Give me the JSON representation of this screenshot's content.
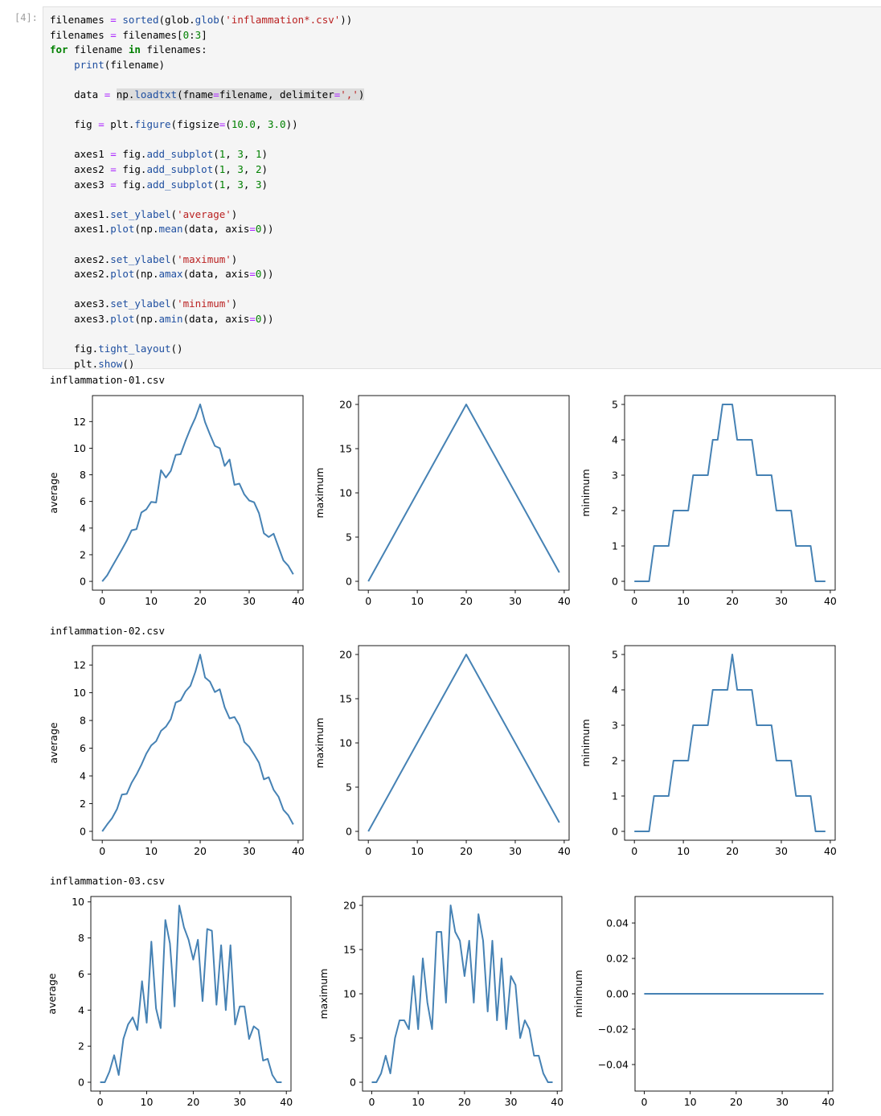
{
  "cell": {
    "prompt": "[4]:",
    "code_lines": [
      [
        [
          "filenames ",
          ""
        ],
        [
          "=",
          "op"
        ],
        [
          " ",
          ""
        ],
        [
          "sorted",
          "fn"
        ],
        [
          "(glob.",
          ""
        ],
        [
          "glob",
          "fn"
        ],
        [
          "(",
          ""
        ],
        [
          "'inflammation*.csv'",
          "str"
        ],
        [
          "))",
          ""
        ]
      ],
      [
        [
          "filenames ",
          ""
        ],
        [
          "=",
          "op"
        ],
        [
          " filenames[",
          ""
        ],
        [
          "0",
          "num"
        ],
        [
          ":",
          ""
        ],
        [
          "3",
          "num"
        ],
        [
          "]",
          ""
        ]
      ],
      [
        [
          "for",
          "kw"
        ],
        [
          " filename ",
          ""
        ],
        [
          "in",
          "kw"
        ],
        [
          " filenames:",
          ""
        ]
      ],
      [
        [
          "    ",
          ""
        ],
        [
          "print",
          "fn"
        ],
        [
          "(filename)",
          ""
        ]
      ],
      [
        [
          "",
          ""
        ]
      ],
      [
        [
          "    data ",
          ""
        ],
        [
          "=",
          "op"
        ],
        [
          " ",
          ""
        ],
        [
          "np.",
          "hl"
        ],
        [
          "loadtxt",
          "hlfn"
        ],
        [
          "(fname",
          "hl"
        ],
        [
          "=",
          "hlop"
        ],
        [
          "filename, delimiter",
          "hl"
        ],
        [
          "=",
          "hlop"
        ],
        [
          "','",
          "hlstr"
        ],
        [
          ")",
          "hl"
        ]
      ],
      [
        [
          "",
          ""
        ]
      ],
      [
        [
          "    fig ",
          ""
        ],
        [
          "=",
          "op"
        ],
        [
          " plt.",
          ""
        ],
        [
          "figure",
          "fn"
        ],
        [
          "(figsize",
          ""
        ],
        [
          "=",
          "op"
        ],
        [
          "(",
          ""
        ],
        [
          "10.0",
          "num"
        ],
        [
          ", ",
          ""
        ],
        [
          "3.0",
          "num"
        ],
        [
          "))",
          ""
        ]
      ],
      [
        [
          "",
          ""
        ]
      ],
      [
        [
          "    axes1 ",
          ""
        ],
        [
          "=",
          "op"
        ],
        [
          " fig.",
          ""
        ],
        [
          "add_subplot",
          "fn"
        ],
        [
          "(",
          ""
        ],
        [
          "1",
          "num"
        ],
        [
          ", ",
          ""
        ],
        [
          "3",
          "num"
        ],
        [
          ", ",
          ""
        ],
        [
          "1",
          "num"
        ],
        [
          ")",
          ""
        ]
      ],
      [
        [
          "    axes2 ",
          ""
        ],
        [
          "=",
          "op"
        ],
        [
          " fig.",
          ""
        ],
        [
          "add_subplot",
          "fn"
        ],
        [
          "(",
          ""
        ],
        [
          "1",
          "num"
        ],
        [
          ", ",
          ""
        ],
        [
          "3",
          "num"
        ],
        [
          ", ",
          ""
        ],
        [
          "2",
          "num"
        ],
        [
          ")",
          ""
        ]
      ],
      [
        [
          "    axes3 ",
          ""
        ],
        [
          "=",
          "op"
        ],
        [
          " fig.",
          ""
        ],
        [
          "add_subplot",
          "fn"
        ],
        [
          "(",
          ""
        ],
        [
          "1",
          "num"
        ],
        [
          ", ",
          ""
        ],
        [
          "3",
          "num"
        ],
        [
          ", ",
          ""
        ],
        [
          "3",
          "num"
        ],
        [
          ")",
          ""
        ]
      ],
      [
        [
          "",
          ""
        ]
      ],
      [
        [
          "    axes1.",
          ""
        ],
        [
          "set_ylabel",
          "fn"
        ],
        [
          "(",
          ""
        ],
        [
          "'average'",
          "str"
        ],
        [
          ")",
          ""
        ]
      ],
      [
        [
          "    axes1.",
          ""
        ],
        [
          "plot",
          "fn"
        ],
        [
          "(np.",
          ""
        ],
        [
          "mean",
          "fn"
        ],
        [
          "(data, axis",
          ""
        ],
        [
          "=",
          "op"
        ],
        [
          "0",
          "num"
        ],
        [
          "))",
          ""
        ]
      ],
      [
        [
          "",
          ""
        ]
      ],
      [
        [
          "    axes2.",
          ""
        ],
        [
          "set_ylabel",
          "fn"
        ],
        [
          "(",
          ""
        ],
        [
          "'maximum'",
          "str"
        ],
        [
          ")",
          ""
        ]
      ],
      [
        [
          "    axes2.",
          ""
        ],
        [
          "plot",
          "fn"
        ],
        [
          "(np.",
          ""
        ],
        [
          "amax",
          "fn"
        ],
        [
          "(data, axis",
          ""
        ],
        [
          "=",
          "op"
        ],
        [
          "0",
          "num"
        ],
        [
          "))",
          ""
        ]
      ],
      [
        [
          "",
          ""
        ]
      ],
      [
        [
          "    axes3.",
          ""
        ],
        [
          "set_ylabel",
          "fn"
        ],
        [
          "(",
          ""
        ],
        [
          "'minimum'",
          "str"
        ],
        [
          ")",
          ""
        ]
      ],
      [
        [
          "    axes3.",
          ""
        ],
        [
          "plot",
          "fn"
        ],
        [
          "(np.",
          ""
        ],
        [
          "amin",
          "fn"
        ],
        [
          "(data, axis",
          ""
        ],
        [
          "=",
          "op"
        ],
        [
          "0",
          "num"
        ],
        [
          "))",
          ""
        ]
      ],
      [
        [
          "",
          ""
        ]
      ],
      [
        [
          "    fig.",
          ""
        ],
        [
          "tight_layout",
          "fn"
        ],
        [
          "()",
          ""
        ]
      ],
      [
        [
          "    plt.",
          ""
        ],
        [
          "show",
          "fn"
        ],
        [
          "()",
          ""
        ]
      ]
    ]
  },
  "output": {
    "line_color": "#4682b4",
    "files": [
      "inflammation-01.csv",
      "inflammation-02.csv",
      "inflammation-03.csv"
    ]
  },
  "chart_data": [
    {
      "type": "line",
      "file": "inflammation-01.csv",
      "ylabel": "average",
      "xlim": [
        -2,
        41
      ],
      "ylim": [
        -0.66,
        13.95
      ],
      "xticks": [
        0,
        10,
        20,
        30,
        40
      ],
      "yticks": [
        0,
        2,
        4,
        6,
        8,
        10,
        12
      ],
      "y": [
        0,
        0.45,
        1.11,
        1.75,
        2.39,
        3.06,
        3.83,
        3.92,
        5.17,
        5.41,
        5.97,
        5.92,
        8.35,
        7.8,
        8.3,
        9.5,
        9.55,
        10.55,
        11.47,
        12.28,
        13.29,
        11.96,
        11.03,
        10.17,
        10,
        8.67,
        9.15,
        7.25,
        7.34,
        6.53,
        6.07,
        5.94,
        5.12,
        3.61,
        3.33,
        3.58,
        2.57,
        1.57,
        1.17,
        0.53
      ]
    },
    {
      "type": "line",
      "file": "inflammation-01.csv",
      "ylabel": "maximum",
      "xlim": [
        -2,
        41
      ],
      "ylim": [
        -1,
        21
      ],
      "xticks": [
        0,
        10,
        20,
        30,
        40
      ],
      "yticks": [
        0,
        5,
        10,
        15,
        20
      ],
      "y": [
        0,
        1,
        2,
        3,
        4,
        5,
        6,
        7,
        8,
        9,
        10,
        11,
        12,
        13,
        14,
        15,
        16,
        17,
        18,
        19,
        20,
        19,
        18,
        17,
        16,
        15,
        14,
        13,
        12,
        11,
        10,
        9,
        8,
        7,
        6,
        5,
        4,
        3,
        2,
        1
      ]
    },
    {
      "type": "line",
      "file": "inflammation-01.csv",
      "ylabel": "minimum",
      "xlim": [
        -2,
        41
      ],
      "ylim": [
        -0.25,
        5.25
      ],
      "xticks": [
        0,
        10,
        20,
        30,
        40
      ],
      "yticks": [
        0,
        1,
        2,
        3,
        4,
        5
      ],
      "y": [
        0,
        0,
        0,
        0,
        1,
        1,
        1,
        1,
        2,
        2,
        2,
        2,
        3,
        3,
        3,
        3,
        4,
        4,
        5,
        5,
        5,
        4,
        4,
        4,
        4,
        3,
        3,
        3,
        3,
        2,
        2,
        2,
        2,
        1,
        1,
        1,
        1,
        0,
        0,
        0
      ]
    },
    {
      "type": "line",
      "file": "inflammation-02.csv",
      "ylabel": "average",
      "xlim": [
        -2,
        41
      ],
      "ylim": [
        -0.64,
        13.4
      ],
      "xticks": [
        0,
        10,
        20,
        30,
        40
      ],
      "yticks": [
        0,
        2,
        4,
        6,
        8,
        10,
        12
      ],
      "y": [
        0,
        0.5,
        0.95,
        1.6,
        2.65,
        2.7,
        3.5,
        4.1,
        4.8,
        5.6,
        6.2,
        6.5,
        7.25,
        7.55,
        8.1,
        9.3,
        9.45,
        10.1,
        10.5,
        11.5,
        12.75,
        11.1,
        10.8,
        10.05,
        10.25,
        8.95,
        8.15,
        8.25,
        7.65,
        6.45,
        6.1,
        5.55,
        4.95,
        3.75,
        3.9,
        3,
        2.5,
        1.55,
        1.15,
        0.5
      ]
    },
    {
      "type": "line",
      "file": "inflammation-02.csv",
      "ylabel": "maximum",
      "xlim": [
        -2,
        41
      ],
      "ylim": [
        -1,
        21
      ],
      "xticks": [
        0,
        10,
        20,
        30,
        40
      ],
      "yticks": [
        0,
        5,
        10,
        15,
        20
      ],
      "y": [
        0,
        1,
        2,
        3,
        4,
        5,
        6,
        7,
        8,
        9,
        10,
        11,
        12,
        13,
        14,
        15,
        16,
        17,
        18,
        19,
        20,
        19,
        18,
        17,
        16,
        15,
        14,
        13,
        12,
        11,
        10,
        9,
        8,
        7,
        6,
        5,
        4,
        3,
        2,
        1
      ]
    },
    {
      "type": "line",
      "file": "inflammation-02.csv",
      "ylabel": "minimum",
      "xlim": [
        -2,
        41
      ],
      "ylim": [
        -0.25,
        5.25
      ],
      "xticks": [
        0,
        10,
        20,
        30,
        40
      ],
      "yticks": [
        0,
        1,
        2,
        3,
        4,
        5
      ],
      "y": [
        0,
        0,
        0,
        0,
        1,
        1,
        1,
        1,
        2,
        2,
        2,
        2,
        3,
        3,
        3,
        3,
        4,
        4,
        4,
        4,
        5,
        4,
        4,
        4,
        4,
        3,
        3,
        3,
        3,
        2,
        2,
        2,
        2,
        1,
        1,
        1,
        1,
        0,
        0,
        0
      ]
    },
    {
      "type": "line",
      "file": "inflammation-03.csv",
      "ylabel": "average",
      "xlim": [
        -2,
        41
      ],
      "ylim": [
        -0.49,
        10.3
      ],
      "xticks": [
        0,
        10,
        20,
        30,
        40
      ],
      "yticks": [
        0,
        2,
        4,
        6,
        8,
        10
      ],
      "y": [
        0,
        0,
        0.6,
        1.5,
        0.4,
        2.4,
        3.2,
        3.6,
        2.9,
        5.6,
        3.3,
        7.8,
        4.1,
        3,
        9,
        7.7,
        4.2,
        9.8,
        8.6,
        7.9,
        6.8,
        7.9,
        4.5,
        8.5,
        8.4,
        4.3,
        7.6,
        4,
        7.6,
        3.2,
        4.2,
        4.2,
        2.4,
        3.1,
        2.9,
        1.2,
        1.3,
        0.4,
        0,
        0
      ]
    },
    {
      "type": "line",
      "file": "inflammation-03.csv",
      "ylabel": "maximum",
      "xlim": [
        -2,
        41
      ],
      "ylim": [
        -1,
        21
      ],
      "xticks": [
        0,
        10,
        20,
        30,
        40
      ],
      "yticks": [
        0,
        5,
        10,
        15,
        20
      ],
      "y": [
        0,
        0,
        1,
        3,
        1,
        5,
        7,
        7,
        6,
        12,
        6,
        14,
        9,
        6,
        17,
        17,
        9,
        20,
        17,
        16,
        12,
        16,
        9,
        19,
        16,
        8,
        16,
        7,
        14,
        6,
        12,
        11,
        5,
        7,
        6,
        3,
        3,
        1,
        0,
        0
      ]
    },
    {
      "type": "line",
      "file": "inflammation-03.csv",
      "ylabel": "minimum",
      "xlim": [
        -2,
        41
      ],
      "ylim": [
        -0.055,
        0.055
      ],
      "xticks": [
        0,
        10,
        20,
        30,
        40
      ],
      "yticks": [
        -0.04,
        -0.02,
        0.0,
        0.02,
        0.04
      ],
      "yticklabels": [
        "−0.04",
        "−0.02",
        "0.00",
        "0.02",
        "0.04"
      ],
      "y": [
        0,
        0,
        0,
        0,
        0,
        0,
        0,
        0,
        0,
        0,
        0,
        0,
        0,
        0,
        0,
        0,
        0,
        0,
        0,
        0,
        0,
        0,
        0,
        0,
        0,
        0,
        0,
        0,
        0,
        0,
        0,
        0,
        0,
        0,
        0,
        0,
        0,
        0,
        0,
        0
      ]
    }
  ]
}
